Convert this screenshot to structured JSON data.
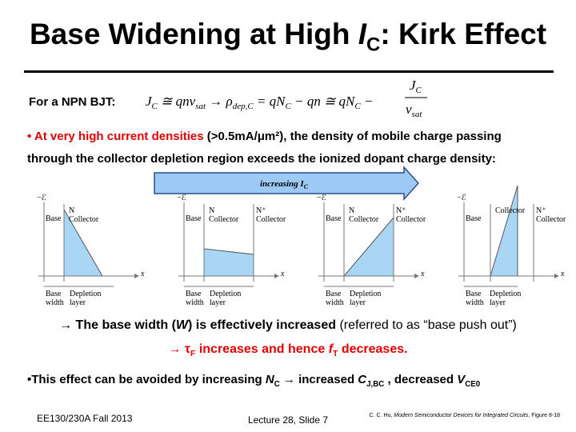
{
  "title": {
    "text": "Base Widening at High ",
    "italic": "I",
    "sub": "C",
    "rest": ": Kirk Effect"
  },
  "intro": "For a NPN BJT:",
  "equation": {
    "parts": [
      "J",
      "C",
      " ≅ qnv",
      "sat",
      " → ρ",
      "dep,C",
      " = qN",
      "C",
      " − qn ≅ qN",
      "C",
      " −"
    ],
    "numerator": [
      "J",
      "C"
    ],
    "denominator": [
      "v",
      "sat"
    ]
  },
  "bullet": {
    "marker": "•",
    "highlight": "At very high current densities",
    "text1": " (>0.5mA/μm²), the density of mobile charge passing",
    "text2": "through the collector depletion region exceeds the ionized dopant charge density:"
  },
  "arrow": {
    "text": "increasing I",
    "sub": "C"
  },
  "panels": [
    {
      "axis": "−ℰ",
      "base": "Base",
      "n": "N",
      "collector": "Collector",
      "x": "x",
      "base_width": [
        "Base",
        "width"
      ],
      "depletion": [
        "Depletion",
        "layer"
      ]
    },
    {
      "axis": "−ℰ",
      "base": "Base",
      "n": "N",
      "collector": "Collector",
      "n_plus": "N⁺",
      "collector2": "Collector",
      "x": "x",
      "base_width": [
        "Base",
        "width"
      ],
      "depletion": [
        "Depletion",
        "layer"
      ]
    },
    {
      "axis": "−ℰ",
      "base": "Base",
      "n": "N",
      "collector": "Collector",
      "n_plus": "N⁺",
      "collector2": "Collector",
      "x": "x",
      "base_width": [
        "Base",
        "width"
      ],
      "depletion": [
        "Depletion",
        "layer"
      ]
    },
    {
      "axis": "−ℰ",
      "base": "Base",
      "n": "Collector",
      "n_plus": "N⁺",
      "collector2": "Collector",
      "x": "x",
      "base_width": [
        "Base",
        "width"
      ],
      "depletion": [
        "Depletion",
        "layer"
      ]
    }
  ],
  "result1": {
    "arrow": "→",
    "text": " The base width (",
    "italic": "W",
    "rest": ") is effectively increased",
    "note": " (referred to as “base push out”)"
  },
  "result2": {
    "arrow": "→",
    "tau": " τ",
    "tau_sub": "F",
    "text": " increases and hence ",
    "f": "f",
    "f_sub": "T",
    "rest": " decreases."
  },
  "conclusion": {
    "text": "•This effect can be avoided by increasing ",
    "n": "N",
    "n_sub": "C",
    "t2": " → increased ",
    "c": "C",
    "c_sub": "J,BC",
    "t3": " , decreased ",
    "v": "V",
    "v_sub": "CE0"
  },
  "footer": {
    "left": "EE130/230A Fall 2013",
    "center": "Lecture 28, Slide 7",
    "citation": "C. C. Hu, ",
    "book": "Modern Semiconductor Devices for Integrated Circuits",
    "figure": ", Figure 8-18"
  }
}
